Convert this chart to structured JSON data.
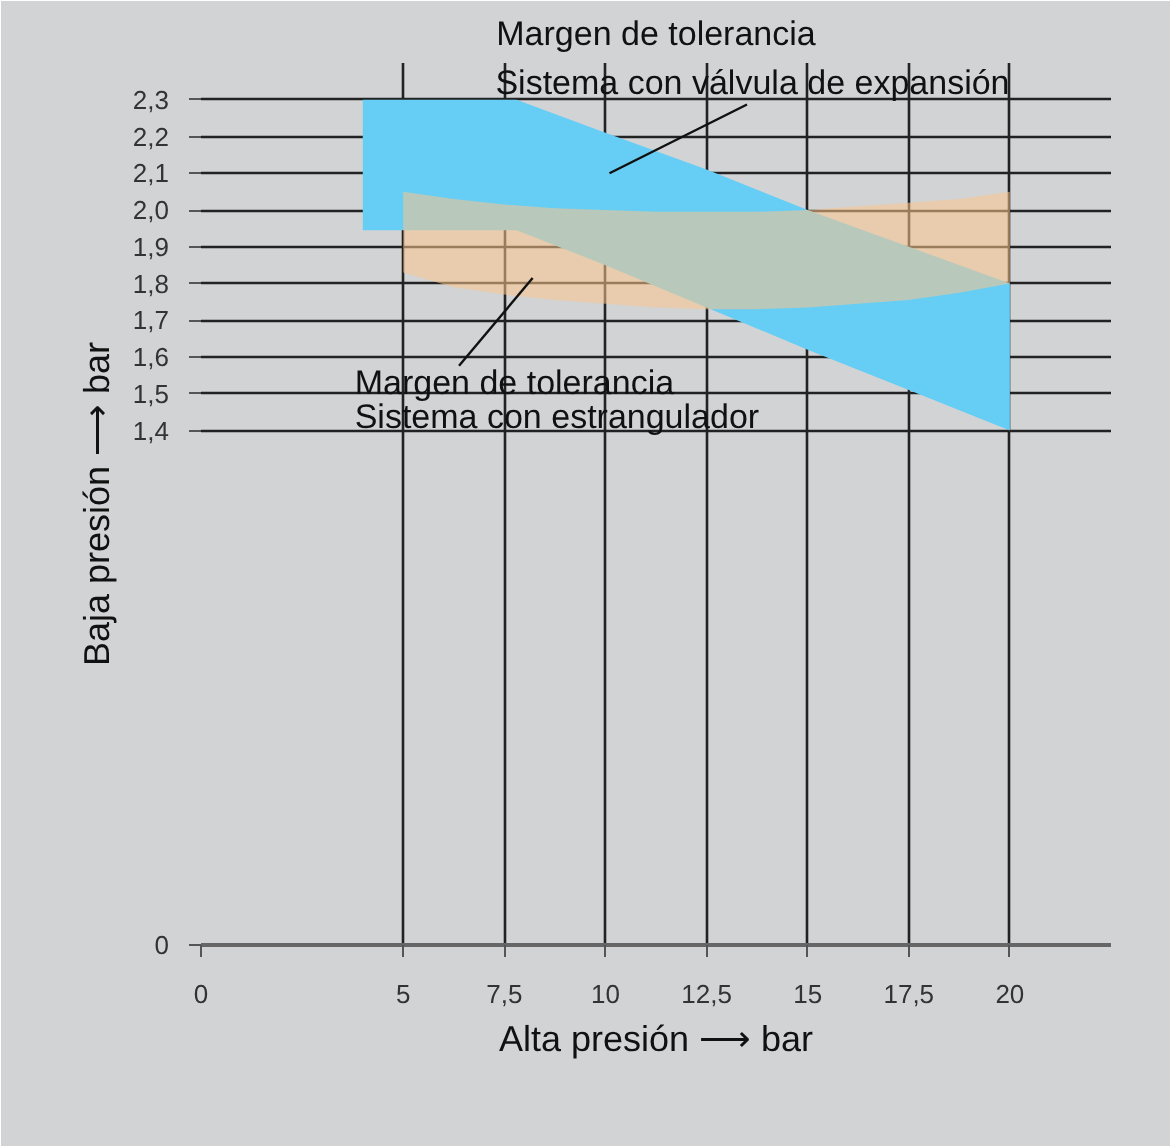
{
  "chart_data": {
    "type": "area",
    "xlabel": "Alta presión ⟶ bar",
    "ylabel": "Baja presión ⟶ bar",
    "xlim": [
      0,
      22.5
    ],
    "ylim": [
      0,
      2.4
    ],
    "xticks": [
      0,
      5,
      {
        "value": 7.5,
        "label": "7,5"
      },
      10,
      {
        "value": 12.5,
        "label": "12,5"
      },
      15,
      {
        "value": 17.5,
        "label": "17,5"
      },
      20
    ],
    "yticks": [
      0,
      {
        "value": 1.4,
        "label": "1,4"
      },
      {
        "value": 1.5,
        "label": "1,5"
      },
      {
        "value": 1.6,
        "label": "1,6"
      },
      {
        "value": 1.7,
        "label": "1,7"
      },
      {
        "value": 1.8,
        "label": "1,8"
      },
      {
        "value": 1.9,
        "label": "1,9"
      },
      {
        "value": 2.0,
        "label": "2,0"
      },
      {
        "value": 2.1,
        "label": "2,1"
      },
      {
        "value": 2.2,
        "label": "2,2"
      },
      {
        "value": 2.3,
        "label": "2,3"
      }
    ],
    "grid": true,
    "series": [
      {
        "color": "#66cdf5",
        "x": [
          4,
          5,
          7.8,
          10,
          12.5,
          15,
          17.5,
          20,
          20,
          17.5,
          15,
          12.5,
          10,
          7.8,
          5,
          4
        ],
        "values": [
          2.3,
          2.3,
          2.3,
          2.21,
          2.11,
          2.0,
          1.9,
          1.8,
          1.4,
          1.51,
          1.62,
          1.735,
          1.85,
          1.945,
          1.945,
          1.945
        ]
      },
      {
        "color": "#fcc68c",
        "x": [
          5,
          6.25,
          7.5,
          8.75,
          10,
          11.25,
          12.5,
          13.75,
          15,
          16.25,
          17.5,
          18.75,
          20,
          20,
          18.75,
          17.5,
          16.25,
          15,
          13.75,
          12.5,
          11.25,
          10,
          8.75,
          7.5,
          6.25,
          5
        ],
        "values": [
          2.05,
          2.03,
          2.015,
          2.005,
          2.0,
          1.995,
          1.995,
          1.995,
          2.0,
          2.01,
          2.02,
          2.03,
          2.05,
          1.8,
          1.775,
          1.755,
          1.745,
          1.735,
          1.73,
          1.73,
          1.735,
          1.745,
          1.755,
          1.77,
          1.79,
          1.83
        ]
      }
    ],
    "annotations": [
      "Margen de tolerancia\nSistema con válvula de expansión",
      "Margen de tolerancia\nSistema con estrangulador"
    ]
  }
}
